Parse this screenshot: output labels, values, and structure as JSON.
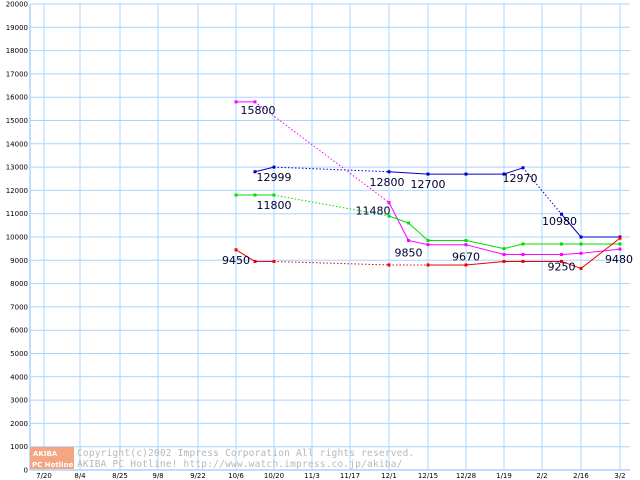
{
  "chart_data": {
    "type": "line",
    "ylim": [
      0,
      20000
    ],
    "yticks": [
      0,
      1000,
      2000,
      3000,
      4000,
      5000,
      6000,
      7000,
      8000,
      9000,
      10000,
      11000,
      12000,
      13000,
      14000,
      15000,
      16000,
      17000,
      18000,
      19000,
      20000
    ],
    "categories": [
      "7/20",
      "8/4",
      "8/25",
      "9/8",
      "9/22",
      "10/6",
      "10/20",
      "11/3",
      "11/17",
      "12/1",
      "12/15",
      "12/28",
      "1/19",
      "2/2",
      "2/16",
      "3/2"
    ],
    "grid": true,
    "legend": "none",
    "series": [
      {
        "color": "#0000cc",
        "x": [
          "10/13",
          "10/20",
          "12/1",
          "12/15",
          "12/28",
          "1/19",
          "1/26",
          "2/9",
          "2/16",
          "3/2"
        ],
        "values": [
          12800,
          12999,
          12800,
          12700,
          12700,
          12700,
          12970,
          10980,
          10000,
          10000
        ],
        "dotted_segments": [
          [
            1,
            2
          ],
          [
            6,
            7
          ]
        ]
      },
      {
        "color": "#ff00ff",
        "x": [
          "10/6",
          "10/13",
          "12/1",
          "12/8",
          "12/15",
          "12/28",
          "1/19",
          "1/26",
          "2/9",
          "2/16",
          "3/2"
        ],
        "values": [
          15800,
          15800,
          11480,
          9850,
          9670,
          9670,
          9250,
          9250,
          9250,
          9300,
          9480
        ],
        "dotted_segments": [
          [
            1,
            2
          ]
        ]
      },
      {
        "color": "#00dd00",
        "x": [
          "10/6",
          "10/13",
          "10/20",
          "12/1",
          "12/8",
          "12/15",
          "12/28",
          "1/19",
          "1/26",
          "2/9",
          "2/16",
          "3/2"
        ],
        "values": [
          11800,
          11800,
          11800,
          10900,
          10600,
          9850,
          9850,
          9500,
          9700,
          9700,
          9700,
          9700
        ],
        "dotted_segments": [
          [
            2,
            3
          ]
        ]
      },
      {
        "color": "#ee0000",
        "x": [
          "10/6",
          "10/13",
          "10/20",
          "12/1",
          "12/15",
          "12/28",
          "1/19",
          "1/26",
          "2/9",
          "2/16",
          "3/2"
        ],
        "values": [
          9450,
          8950,
          8950,
          8800,
          8800,
          8800,
          8950,
          8950,
          8950,
          8650,
          9950
        ],
        "dotted_segments": [
          [
            2,
            3
          ],
          [
            3,
            4
          ]
        ]
      }
    ],
    "data_labels": [
      "15800",
      "12999",
      "12800",
      "12700",
      "12970",
      "10980",
      "11800",
      "11480",
      "9850",
      "9670",
      "9250",
      "9480",
      "9450"
    ]
  },
  "footer": {
    "logo_top": "AKIBA",
    "logo_bottom": "PC Hotline!",
    "copyright": "Copyright(c)2002 Impress Corporation All rights reserved.",
    "site_line": "AKIBA PC Hotline!  http://www.watch.impress.co.jp/akiba/"
  },
  "colors": {
    "grid": "#aad4ff",
    "axis": "#aad4ff",
    "logo": "#f4a582"
  }
}
